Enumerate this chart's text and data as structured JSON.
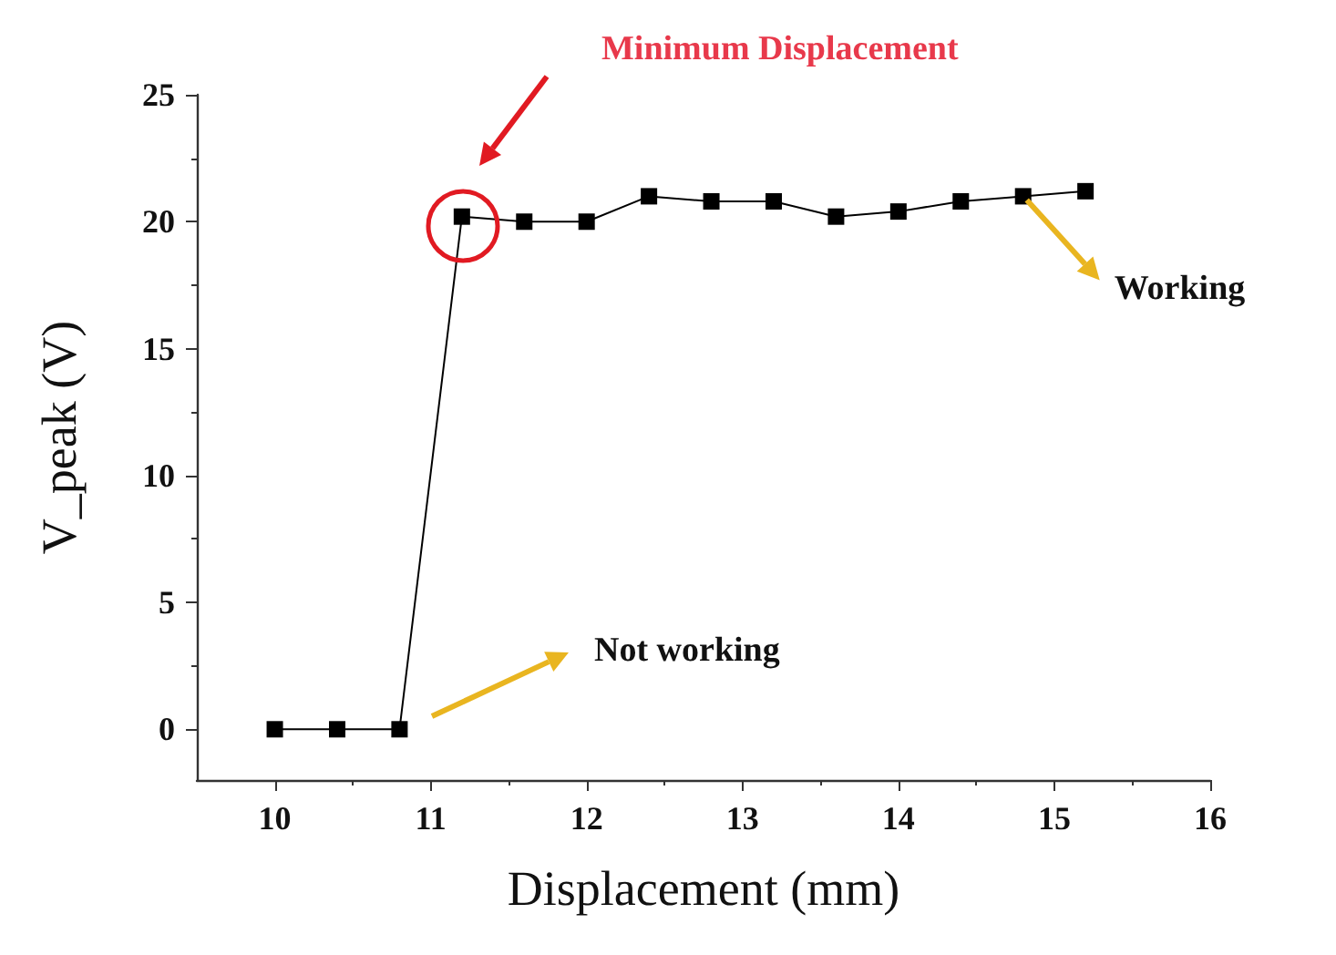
{
  "chart_data": {
    "type": "line",
    "xlabel": "Displacement (mm)",
    "ylabel": "V_peak (V)",
    "x": [
      10,
      10.4,
      10.8,
      11.2,
      11.6,
      12,
      12.4,
      12.8,
      13.2,
      13.6,
      14,
      14.4,
      14.8,
      15.2
    ],
    "series": [
      {
        "color": "#000000",
        "values": [
          0,
          0,
          0,
          20.2,
          20,
          20,
          21,
          20.8,
          20.8,
          20.2,
          20.4,
          20.8,
          21,
          21.2
        ]
      }
    ],
    "xlim": [
      9.5,
      16
    ],
    "xticks": [
      10,
      11,
      12,
      13,
      14,
      15,
      16
    ],
    "ylim": [
      -2,
      25
    ],
    "yticks": [
      0,
      5,
      10,
      15,
      20,
      25
    ],
    "marker": "square",
    "line_style": "solid",
    "grid": false,
    "annotations": [
      "Minimum Displacement",
      {
        "text": "Working",
        "x": 14.8,
        "y": 21
      },
      "Not working"
    ]
  }
}
